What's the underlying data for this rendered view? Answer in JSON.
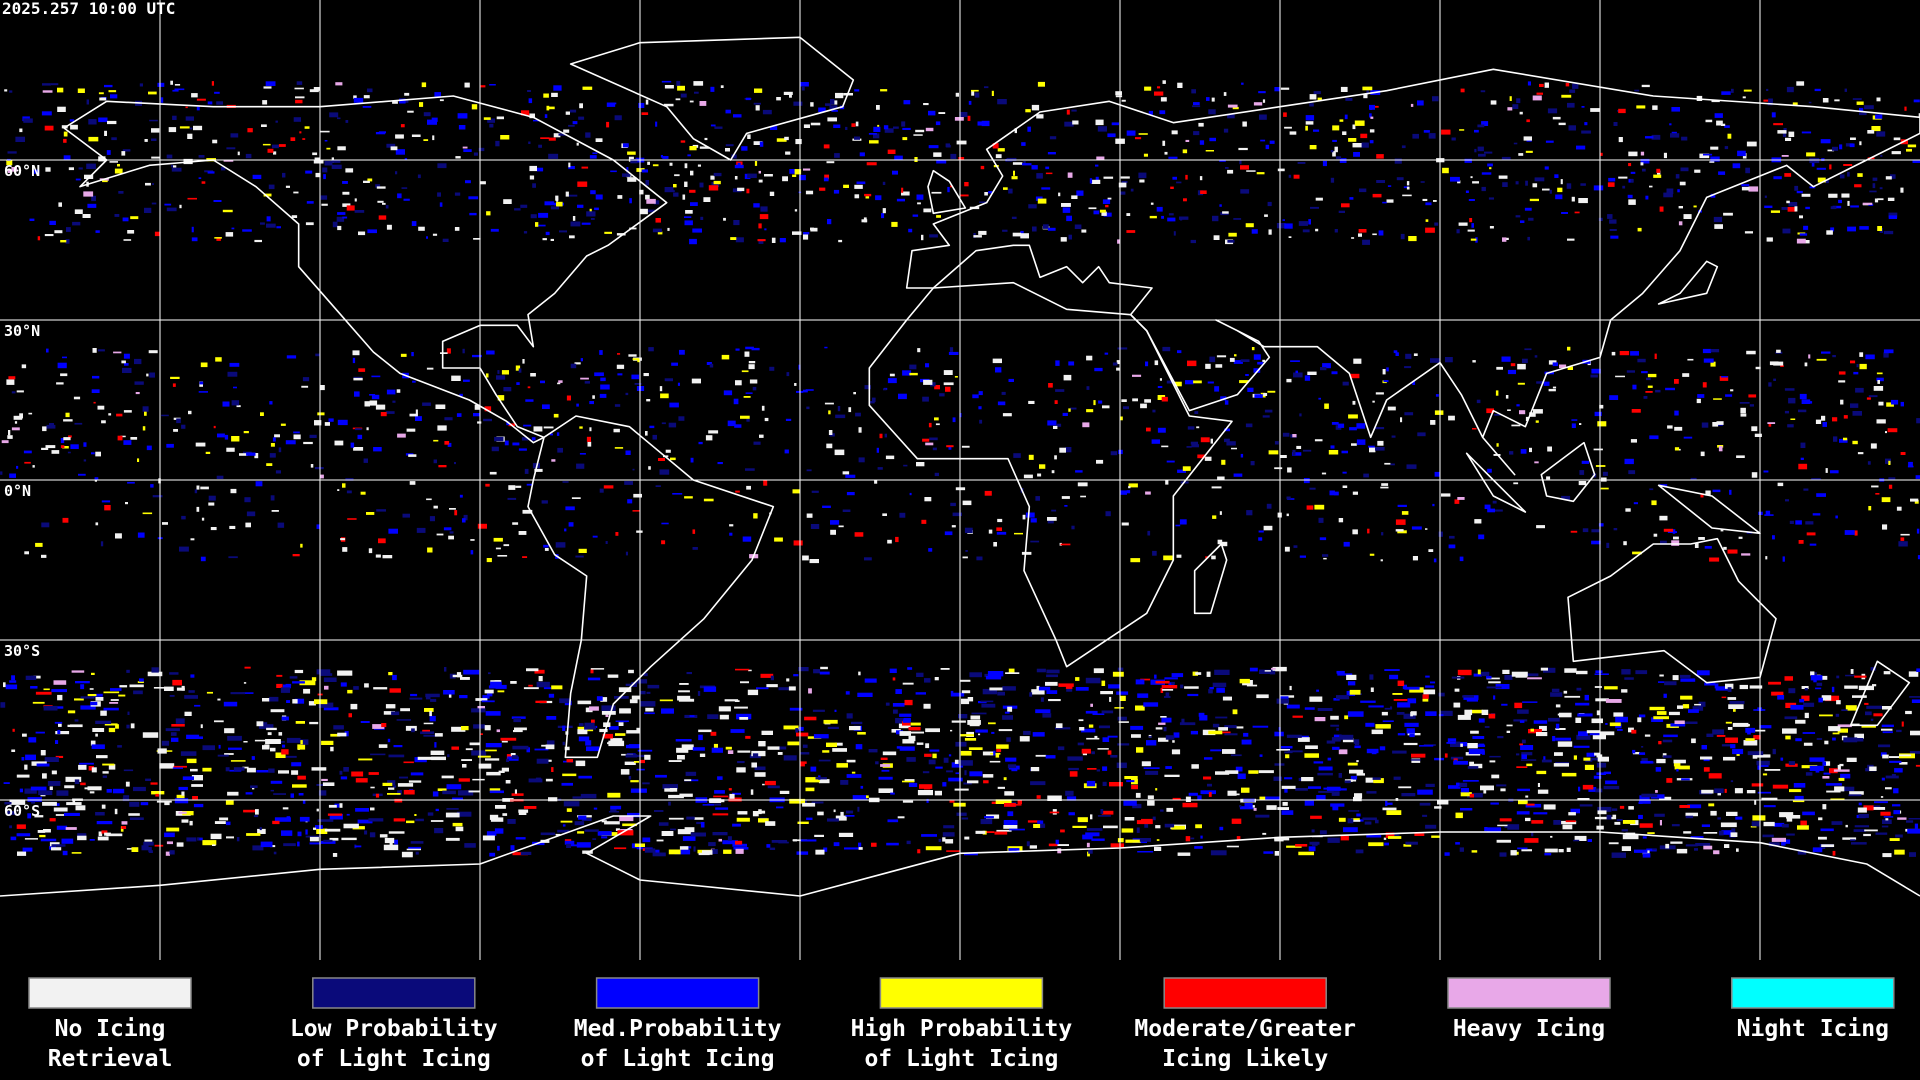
{
  "header": {
    "timestamp": "2025.257 10:00 UTC"
  },
  "map": {
    "latitude_labels": [
      "60°N",
      "30°N",
      "0°N",
      "30°S",
      "60°S"
    ]
  },
  "legend": {
    "items": [
      {
        "color": "#f2f2f2",
        "label": [
          "No Icing",
          "Retrieval"
        ]
      },
      {
        "color": "#0a0a7a",
        "label": [
          "Low Probability",
          "of Light Icing"
        ]
      },
      {
        "color": "#0000ff",
        "label": [
          "Med.Probability",
          "of Light Icing"
        ]
      },
      {
        "color": "#ffff00",
        "label": [
          "High Probability",
          "of Light Icing"
        ]
      },
      {
        "color": "#ff0000",
        "label": [
          "Moderate/Greater",
          "Icing Likely"
        ]
      },
      {
        "color": "#e8a8e8",
        "label": [
          "Heavy Icing"
        ]
      },
      {
        "color": "#00ffff",
        "label": [
          "Night Icing"
        ]
      }
    ]
  }
}
